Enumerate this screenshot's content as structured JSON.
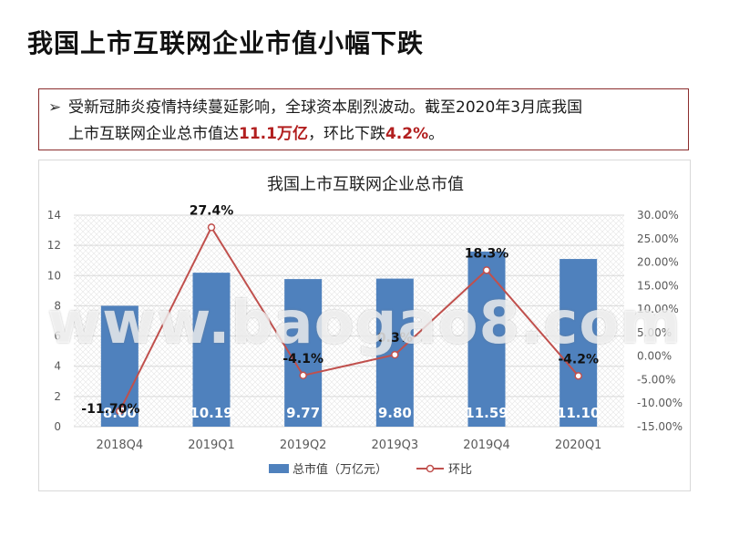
{
  "slide": {
    "title": "我国上市互联网企业市值小幅下跌"
  },
  "summary": {
    "bullet": "➢",
    "line1": "受新冠肺炎疫情持续蔓延影响，全球资本剧烈波动。截至2020年3月底我国",
    "line2_prefix": "上市互联网企业总市值达",
    "line2_value": "11.1万亿",
    "line2_mid": "，环比下跌",
    "line2_pct": "4.2%",
    "line2_end": "。"
  },
  "watermark": "www.baogao8.com",
  "colors": {
    "bar": "#4f81bd",
    "line": "#c0504d",
    "accent": "#b21f1f",
    "grid": "#d9d9d9"
  },
  "chart_data": {
    "type": "bar+line",
    "title": "我国上市互联网企业总市值",
    "categories": [
      "2018Q4",
      "2019Q1",
      "2019Q2",
      "2019Q3",
      "2019Q4",
      "2020Q1"
    ],
    "series": [
      {
        "name": "总市值（万亿元）",
        "type": "bar",
        "axis": "left",
        "values": [
          8.0,
          10.19,
          9.77,
          9.8,
          11.59,
          11.1
        ],
        "labels": [
          "8.00",
          "10.19",
          "9.77",
          "9.80",
          "11.59",
          "11.10"
        ]
      },
      {
        "name": "环比",
        "type": "line",
        "axis": "right",
        "values": [
          -11.7,
          27.4,
          -4.1,
          0.3,
          18.3,
          -4.2
        ],
        "labels": [
          "-11.70%",
          "27.4%",
          "-4.1%",
          "0.3%",
          "18.3%",
          "-4.2%"
        ]
      }
    ],
    "left_axis": {
      "range": [
        0,
        14
      ],
      "ticks": [
        "0",
        "2",
        "4",
        "6",
        "8",
        "10",
        "12",
        "14"
      ]
    },
    "right_axis": {
      "range": [
        -15,
        30
      ],
      "ticks": [
        "-15.00%",
        "-10.00%",
        "-5.00%",
        "0.00%",
        "5.00%",
        "10.00%",
        "15.00%",
        "20.00%",
        "25.00%",
        "30.00%"
      ]
    },
    "legend_position": "bottom"
  }
}
